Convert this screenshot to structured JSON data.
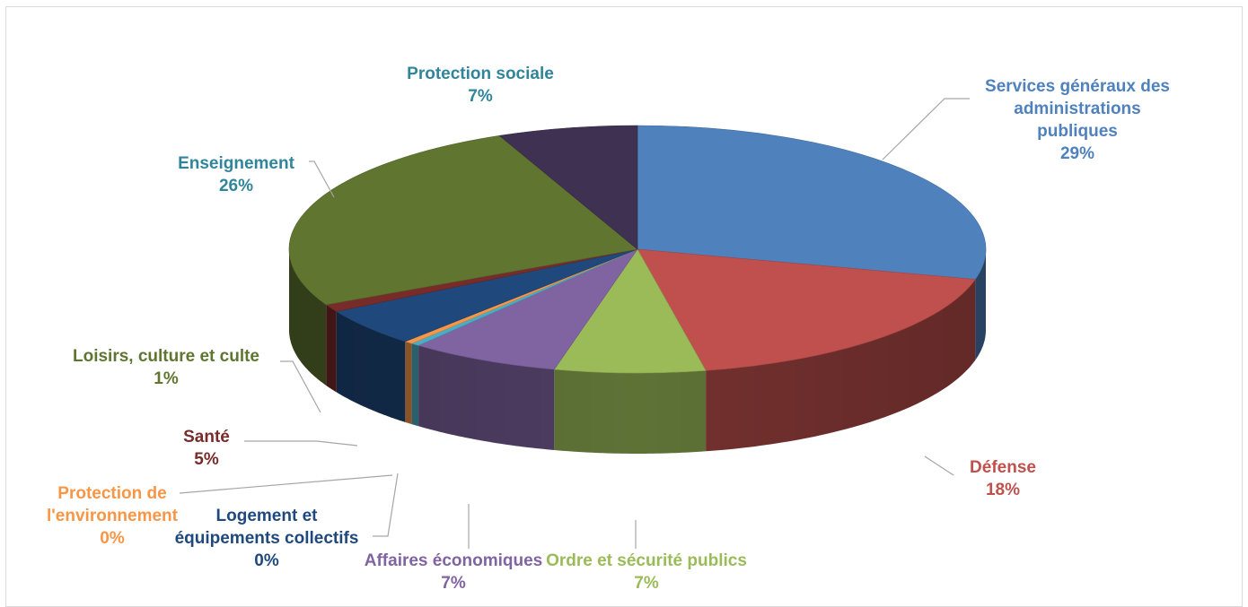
{
  "chart_data": {
    "type": "pie",
    "title": "",
    "slices": [
      {
        "name": "Services généraux des administrations publiques",
        "value": 29,
        "label": "29%",
        "color": "#4f81bd"
      },
      {
        "name": "Défense",
        "value": 18,
        "label": "18%",
        "color": "#c0504d"
      },
      {
        "name": "Ordre et sécurité publics",
        "value": 7,
        "label": "7%",
        "color": "#9bbb59"
      },
      {
        "name": "Affaires économiques",
        "value": 7,
        "label": "7%",
        "color": "#8064a2"
      },
      {
        "name": "Logement et équipements collectifs",
        "value": 0.4,
        "label": "0%",
        "color": "#4bacc6"
      },
      {
        "name": "Protection de l'environnement",
        "value": 0.4,
        "label": "0%",
        "color": "#f79646"
      },
      {
        "name": "Santé",
        "value": 5,
        "label": "5%",
        "color": "#1f497d"
      },
      {
        "name": "Loisirs, culture et culte",
        "value": 1,
        "label": "1%",
        "color": "#772c2a"
      },
      {
        "name": "Enseignement",
        "value": 26,
        "label": "26%",
        "color": "#5f7530"
      },
      {
        "name": "Protection sociale",
        "value": 6.5,
        "label": "7%",
        "color": "#3f3151"
      }
    ],
    "label_colors": {
      "Services généraux des administrations publiques": "#4f81bd",
      "Défense": "#c0504d",
      "Ordre et sécurité publics": "#9bbb59",
      "Affaires économiques": "#8064a2",
      "Logement et équipements collectifs": "#1f497d",
      "Protection de l'environnement": "#f79646",
      "Santé": "#772c2a",
      "Loisirs, culture et culte": "#5f7530",
      "Enseignement": "#31859b",
      "Protection sociale": "#31859b"
    },
    "legend": "none",
    "style": "3d-pie"
  },
  "labels": {
    "services": {
      "l1": "Services généraux des",
      "l2": "administrations",
      "l3": "publiques",
      "pct": "29%"
    },
    "defense": {
      "l1": "Défense",
      "pct": "18%"
    },
    "ordre": {
      "l1": "Ordre et sécurité publics",
      "pct": "7%"
    },
    "affaires": {
      "l1": "Affaires économiques",
      "pct": "7%"
    },
    "logement": {
      "l1": "Logement et",
      "l2": "équipements collectifs",
      "pct": "0%"
    },
    "environnement": {
      "l1": "Protection de",
      "l2": "l'environnement",
      "pct": "0%"
    },
    "sante": {
      "l1": "Santé",
      "pct": "5%"
    },
    "loisirs": {
      "l1": "Loisirs, culture et culte",
      "pct": "1%"
    },
    "enseignement": {
      "l1": "Enseignement",
      "pct": "26%"
    },
    "protection_sociale": {
      "l1": "Protection sociale",
      "pct": "7%"
    }
  }
}
